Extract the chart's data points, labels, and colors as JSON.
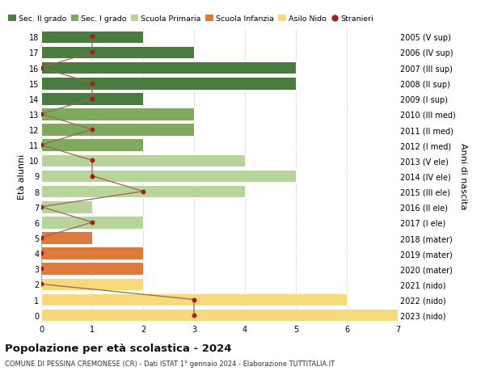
{
  "ages": [
    18,
    17,
    16,
    15,
    14,
    13,
    12,
    11,
    10,
    9,
    8,
    7,
    6,
    5,
    4,
    3,
    2,
    1,
    0
  ],
  "years": [
    "2005 (V sup)",
    "2006 (IV sup)",
    "2007 (III sup)",
    "2008 (II sup)",
    "2009 (I sup)",
    "2010 (III med)",
    "2011 (II med)",
    "2012 (I med)",
    "2013 (V ele)",
    "2014 (IV ele)",
    "2015 (III ele)",
    "2016 (II ele)",
    "2017 (I ele)",
    "2018 (mater)",
    "2019 (mater)",
    "2020 (mater)",
    "2021 (nido)",
    "2022 (nido)",
    "2023 (nido)"
  ],
  "bar_values": [
    2,
    3,
    5,
    5,
    2,
    3,
    3,
    2,
    4,
    5,
    4,
    1,
    2,
    1,
    2,
    2,
    2,
    6,
    7
  ],
  "bar_colors": [
    "#4a7c3f",
    "#4a7c3f",
    "#4a7c3f",
    "#4a7c3f",
    "#4a7c3f",
    "#7faa5c",
    "#7faa5c",
    "#7faa5c",
    "#b8d49a",
    "#b8d49a",
    "#b8d49a",
    "#b8d49a",
    "#b8d49a",
    "#e07a3a",
    "#e07a3a",
    "#e07a3a",
    "#f5d97a",
    "#f5d97a",
    "#f5d97a"
  ],
  "stranieri_values": [
    1,
    1,
    0,
    1,
    1,
    0,
    1,
    0,
    1,
    1,
    2,
    0,
    1,
    0,
    0,
    0,
    0,
    3,
    3
  ],
  "stranieri_color": "#a02020",
  "stranieri_line_color": "#996655",
  "legend_labels": [
    "Sec. II grado",
    "Sec. I grado",
    "Scuola Primaria",
    "Scuola Infanzia",
    "Asilo Nido",
    "Stranieri"
  ],
  "legend_colors": [
    "#4a7c3f",
    "#7faa5c",
    "#b8d49a",
    "#e07a3a",
    "#f5d97a",
    "#a02020"
  ],
  "ylabel_left": "Età alunni",
  "ylabel_right": "Anni di nascita",
  "title": "Popolazione per età scolastica - 2024",
  "subtitle": "COMUNE DI PESSINA CREMONESE (CR) - Dati ISTAT 1° gennaio 2024 - Elaborazione TUTTITALIA.IT",
  "xlim": [
    0,
    7
  ],
  "bg_color": "#ffffff",
  "grid_color": "#cccccc",
  "bar_height": 0.82
}
